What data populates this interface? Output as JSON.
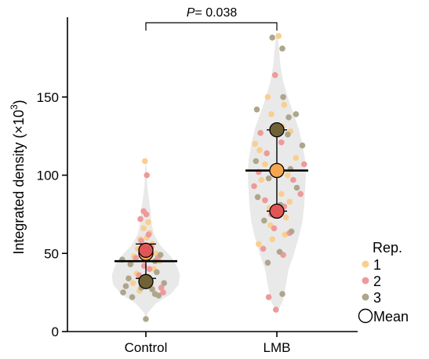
{
  "chart_data": {
    "type": "violin-scatter",
    "ylabel_main": "Integrated density (×10",
    "ylabel_exp": "3",
    "ylabel_close": ")",
    "ylim": [
      0,
      195
    ],
    "yticks": [
      0,
      50,
      100,
      150
    ],
    "categories": [
      "Control",
      "LMB"
    ],
    "annotation": {
      "p_label": "P",
      "p_value": "= 0.038"
    },
    "legend": {
      "title": "Rep.",
      "items": [
        {
          "label": "1",
          "color": "#F9CF8F"
        },
        {
          "label": "2",
          "color": "#EE9A9A"
        },
        {
          "label": "3",
          "color": "#AEA68B"
        }
      ],
      "mean_label": "Mean"
    },
    "colors": {
      "violin": "#E9E9E9",
      "rep1_point": "#F9CF8F",
      "rep2_point": "#EE9A9A",
      "rep3_point": "#AEA68B",
      "rep1_mean": "#F5A64F",
      "rep2_mean": "#E05555",
      "rep3_mean": "#706236"
    },
    "groups": [
      {
        "name": "Control",
        "mean": 45,
        "error": [
          34,
          56
        ],
        "rep_means": [
          {
            "rep": 1,
            "value": 50
          },
          {
            "rep": 2,
            "value": 52
          },
          {
            "rep": 3,
            "value": 32
          }
        ],
        "points": [
          {
            "rep": 1,
            "y": 109,
            "dx": -0.02
          },
          {
            "rep": 1,
            "y": 70,
            "dx": 0.05
          },
          {
            "rep": 1,
            "y": 66,
            "dx": -0.05
          },
          {
            "rep": 1,
            "y": 63,
            "dx": 0.08
          },
          {
            "rep": 1,
            "y": 59,
            "dx": -0.12
          },
          {
            "rep": 1,
            "y": 56,
            "dx": 0.14
          },
          {
            "rep": 1,
            "y": 53,
            "dx": -0.18
          },
          {
            "rep": 1,
            "y": 50,
            "dx": 0.22
          },
          {
            "rep": 1,
            "y": 48,
            "dx": -0.26
          },
          {
            "rep": 1,
            "y": 45,
            "dx": 0.3
          },
          {
            "rep": 1,
            "y": 44,
            "dx": -0.32
          },
          {
            "rep": 1,
            "y": 40,
            "dx": 0.18
          },
          {
            "rep": 1,
            "y": 37,
            "dx": -0.2
          },
          {
            "rep": 1,
            "y": 35,
            "dx": 0.06
          },
          {
            "rep": 1,
            "y": 31,
            "dx": -0.28
          },
          {
            "rep": 1,
            "y": 28,
            "dx": 0.12
          },
          {
            "rep": 1,
            "y": 26,
            "dx": -0.14
          },
          {
            "rep": 1,
            "y": 47,
            "dx": 0.0
          },
          {
            "rep": 1,
            "y": 60,
            "dx": 0.02
          },
          {
            "rep": 2,
            "y": 100,
            "dx": 0.02
          },
          {
            "rep": 2,
            "y": 77,
            "dx": -0.05
          },
          {
            "rep": 2,
            "y": 75,
            "dx": 0.01
          },
          {
            "rep": 2,
            "y": 72,
            "dx": -0.12
          },
          {
            "rep": 2,
            "y": 62,
            "dx": 0.06
          },
          {
            "rep": 2,
            "y": 58,
            "dx": -0.1
          },
          {
            "rep": 2,
            "y": 54,
            "dx": 0.12
          },
          {
            "rep": 2,
            "y": 47,
            "dx": -0.22
          },
          {
            "rep": 2,
            "y": 47,
            "dx": 0.26
          },
          {
            "rep": 2,
            "y": 42,
            "dx": -0.04
          },
          {
            "rep": 2,
            "y": 40,
            "dx": 0.08
          },
          {
            "rep": 2,
            "y": 36,
            "dx": -0.15
          },
          {
            "rep": 2,
            "y": 28,
            "dx": 0.34
          },
          {
            "rep": 2,
            "y": 25,
            "dx": 0.38
          },
          {
            "rep": 2,
            "y": 30,
            "dx": -0.02
          },
          {
            "rep": 3,
            "y": 46,
            "dx": -0.52
          },
          {
            "rep": 3,
            "y": 49,
            "dx": 0.32
          },
          {
            "rep": 3,
            "y": 45,
            "dx": 0.2
          },
          {
            "rep": 3,
            "y": 43,
            "dx": -0.34
          },
          {
            "rep": 3,
            "y": 38,
            "dx": 0.24
          },
          {
            "rep": 3,
            "y": 34,
            "dx": -0.38
          },
          {
            "rep": 3,
            "y": 31,
            "dx": 0.4
          },
          {
            "rep": 3,
            "y": 29,
            "dx": -0.44
          },
          {
            "rep": 3,
            "y": 27,
            "dx": 0.14
          },
          {
            "rep": 3,
            "y": 25,
            "dx": -0.5
          },
          {
            "rep": 3,
            "y": 24,
            "dx": 0.2
          },
          {
            "rep": 3,
            "y": 22,
            "dx": -0.3
          },
          {
            "rep": 3,
            "y": 23,
            "dx": 0.28
          },
          {
            "rep": 3,
            "y": 28,
            "dx": -0.1
          },
          {
            "rep": 3,
            "y": 8,
            "dx": 0.0
          }
        ],
        "violin_profile": [
          [
            8,
            0.0
          ],
          [
            12,
            0.04
          ],
          [
            18,
            0.22
          ],
          [
            24,
            0.55
          ],
          [
            30,
            0.72
          ],
          [
            36,
            0.75
          ],
          [
            42,
            0.68
          ],
          [
            48,
            0.55
          ],
          [
            55,
            0.32
          ],
          [
            62,
            0.18
          ],
          [
            70,
            0.12
          ],
          [
            78,
            0.1
          ],
          [
            86,
            0.06
          ],
          [
            94,
            0.03
          ],
          [
            102,
            0.02
          ],
          [
            110,
            0.0
          ]
        ]
      },
      {
        "name": "LMB",
        "mean": 103,
        "error": [
          77,
          129
        ],
        "rep_means": [
          {
            "rep": 1,
            "value": 103
          },
          {
            "rep": 2,
            "value": 77
          },
          {
            "rep": 3,
            "value": 129
          }
        ],
        "points": [
          {
            "rep": 1,
            "y": 189,
            "dx": 0.04
          },
          {
            "rep": 1,
            "y": 150,
            "dx": -0.2
          },
          {
            "rep": 1,
            "y": 145,
            "dx": 0.16
          },
          {
            "rep": 1,
            "y": 139,
            "dx": -0.12
          },
          {
            "rep": 1,
            "y": 128,
            "dx": 0.3
          },
          {
            "rep": 1,
            "y": 120,
            "dx": -0.48
          },
          {
            "rep": 1,
            "y": 116,
            "dx": -0.38
          },
          {
            "rep": 1,
            "y": 111,
            "dx": 0.42
          },
          {
            "rep": 1,
            "y": 107,
            "dx": -0.26
          },
          {
            "rep": 1,
            "y": 100,
            "dx": 0.24
          },
          {
            "rep": 1,
            "y": 97,
            "dx": -0.34
          },
          {
            "rep": 1,
            "y": 88,
            "dx": 0.1
          },
          {
            "rep": 1,
            "y": 83,
            "dx": 0.28
          },
          {
            "rep": 1,
            "y": 79,
            "dx": -0.16
          },
          {
            "rep": 1,
            "y": 73,
            "dx": 0.2
          },
          {
            "rep": 1,
            "y": 68,
            "dx": -0.14
          },
          {
            "rep": 1,
            "y": 62,
            "dx": 0.18
          },
          {
            "rep": 1,
            "y": 59,
            "dx": -0.1
          },
          {
            "rep": 1,
            "y": 56,
            "dx": -0.4
          },
          {
            "rep": 1,
            "y": 131,
            "dx": 0.12
          },
          {
            "rep": 2,
            "y": 164,
            "dx": -0.04
          },
          {
            "rep": 2,
            "y": 127,
            "dx": -0.36
          },
          {
            "rep": 2,
            "y": 121,
            "dx": 0.1
          },
          {
            "rep": 2,
            "y": 114,
            "dx": -0.22
          },
          {
            "rep": 2,
            "y": 107,
            "dx": 0.6
          },
          {
            "rep": 2,
            "y": 102,
            "dx": -0.4
          },
          {
            "rep": 2,
            "y": 97,
            "dx": 0.36
          },
          {
            "rep": 2,
            "y": 93,
            "dx": -0.5
          },
          {
            "rep": 2,
            "y": 88,
            "dx": 0.52
          },
          {
            "rep": 2,
            "y": 84,
            "dx": -0.26
          },
          {
            "rep": 2,
            "y": 80,
            "dx": 0.16
          },
          {
            "rep": 2,
            "y": 75,
            "dx": -0.12
          },
          {
            "rep": 2,
            "y": 66,
            "dx": -0.06
          },
          {
            "rep": 2,
            "y": 63,
            "dx": 0.28
          },
          {
            "rep": 2,
            "y": 53,
            "dx": -0.3
          },
          {
            "rep": 2,
            "y": 49,
            "dx": 0.14
          },
          {
            "rep": 2,
            "y": 22,
            "dx": -0.18
          },
          {
            "rep": 2,
            "y": 14,
            "dx": -0.02
          },
          {
            "rep": 3,
            "y": 188,
            "dx": -0.1
          },
          {
            "rep": 3,
            "y": 181,
            "dx": 0.12
          },
          {
            "rep": 3,
            "y": 150,
            "dx": 0.14
          },
          {
            "rep": 3,
            "y": 142,
            "dx": -0.44
          },
          {
            "rep": 3,
            "y": 137,
            "dx": 0.26
          },
          {
            "rep": 3,
            "y": 139,
            "dx": 0.42
          },
          {
            "rep": 3,
            "y": 126,
            "dx": 0.24
          },
          {
            "rep": 3,
            "y": 119,
            "dx": 0.56
          },
          {
            "rep": 3,
            "y": 109,
            "dx": -0.46
          },
          {
            "rep": 3,
            "y": 104,
            "dx": 0.3
          },
          {
            "rep": 3,
            "y": 98,
            "dx": -0.18
          },
          {
            "rep": 3,
            "y": 92,
            "dx": 0.44
          },
          {
            "rep": 3,
            "y": 86,
            "dx": -0.42
          },
          {
            "rep": 3,
            "y": 81,
            "dx": 0.08
          },
          {
            "rep": 3,
            "y": 71,
            "dx": -0.28
          },
          {
            "rep": 3,
            "y": 64,
            "dx": 0.32
          },
          {
            "rep": 3,
            "y": 51,
            "dx": 0.06
          },
          {
            "rep": 3,
            "y": 24,
            "dx": 0.12
          },
          {
            "rep": 3,
            "y": 44,
            "dx": -0.2
          }
        ],
        "violin_profile": [
          [
            12,
            0.0
          ],
          [
            20,
            0.14
          ],
          [
            30,
            0.2
          ],
          [
            40,
            0.26
          ],
          [
            50,
            0.38
          ],
          [
            60,
            0.48
          ],
          [
            70,
            0.56
          ],
          [
            80,
            0.6
          ],
          [
            90,
            0.62
          ],
          [
            100,
            0.64
          ],
          [
            110,
            0.62
          ],
          [
            120,
            0.56
          ],
          [
            130,
            0.48
          ],
          [
            140,
            0.36
          ],
          [
            150,
            0.24
          ],
          [
            160,
            0.14
          ],
          [
            170,
            0.08
          ],
          [
            180,
            0.05
          ],
          [
            188,
            0.02
          ],
          [
            192,
            0.0
          ]
        ]
      }
    ]
  }
}
